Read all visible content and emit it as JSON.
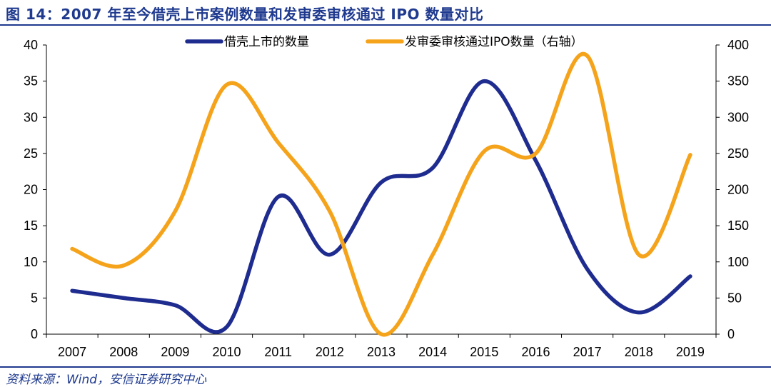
{
  "figure": {
    "title": "图 14：2007 年至今借壳上市案例数量和发审委审核通过 IPO 数量对比",
    "source": "资料来源：Wind，安信证券研究中心"
  },
  "chart_data": {
    "type": "line",
    "title": "",
    "xlabel": "",
    "ylabel": "",
    "categories": [
      "2007",
      "2008",
      "2009",
      "2010",
      "2011",
      "2012",
      "2013",
      "2014",
      "2015",
      "2016",
      "2017",
      "2018",
      "2019"
    ],
    "x_tick_labels": [
      "2007",
      "2008",
      "2009",
      "2010",
      "2011",
      "2012",
      "2013",
      "2014",
      "2015",
      "2016",
      "2017",
      "2018",
      "2019"
    ],
    "ylim": [
      0,
      40
    ],
    "y2lim": [
      0,
      400
    ],
    "y_tick_labels": [
      "0",
      "5",
      "10",
      "15",
      "20",
      "25",
      "30",
      "35",
      "40"
    ],
    "y2_tick_labels": [
      "0",
      "50",
      "100",
      "150",
      "200",
      "250",
      "300",
      "350",
      "400"
    ],
    "grid": false,
    "legend_position": "top-center",
    "series": [
      {
        "name": "借壳上市的数量",
        "axis": "left",
        "color": "#1f2c8f",
        "values": [
          6,
          5,
          4,
          1,
          19,
          11,
          21,
          23,
          35,
          24,
          9,
          3,
          8
        ]
      },
      {
        "name": "发审委审核通过IPO数量（右轴）",
        "axis": "right",
        "color": "#f5a31a",
        "values": [
          118,
          95,
          170,
          345,
          265,
          170,
          0,
          110,
          253,
          250,
          385,
          110,
          248
        ]
      }
    ]
  }
}
